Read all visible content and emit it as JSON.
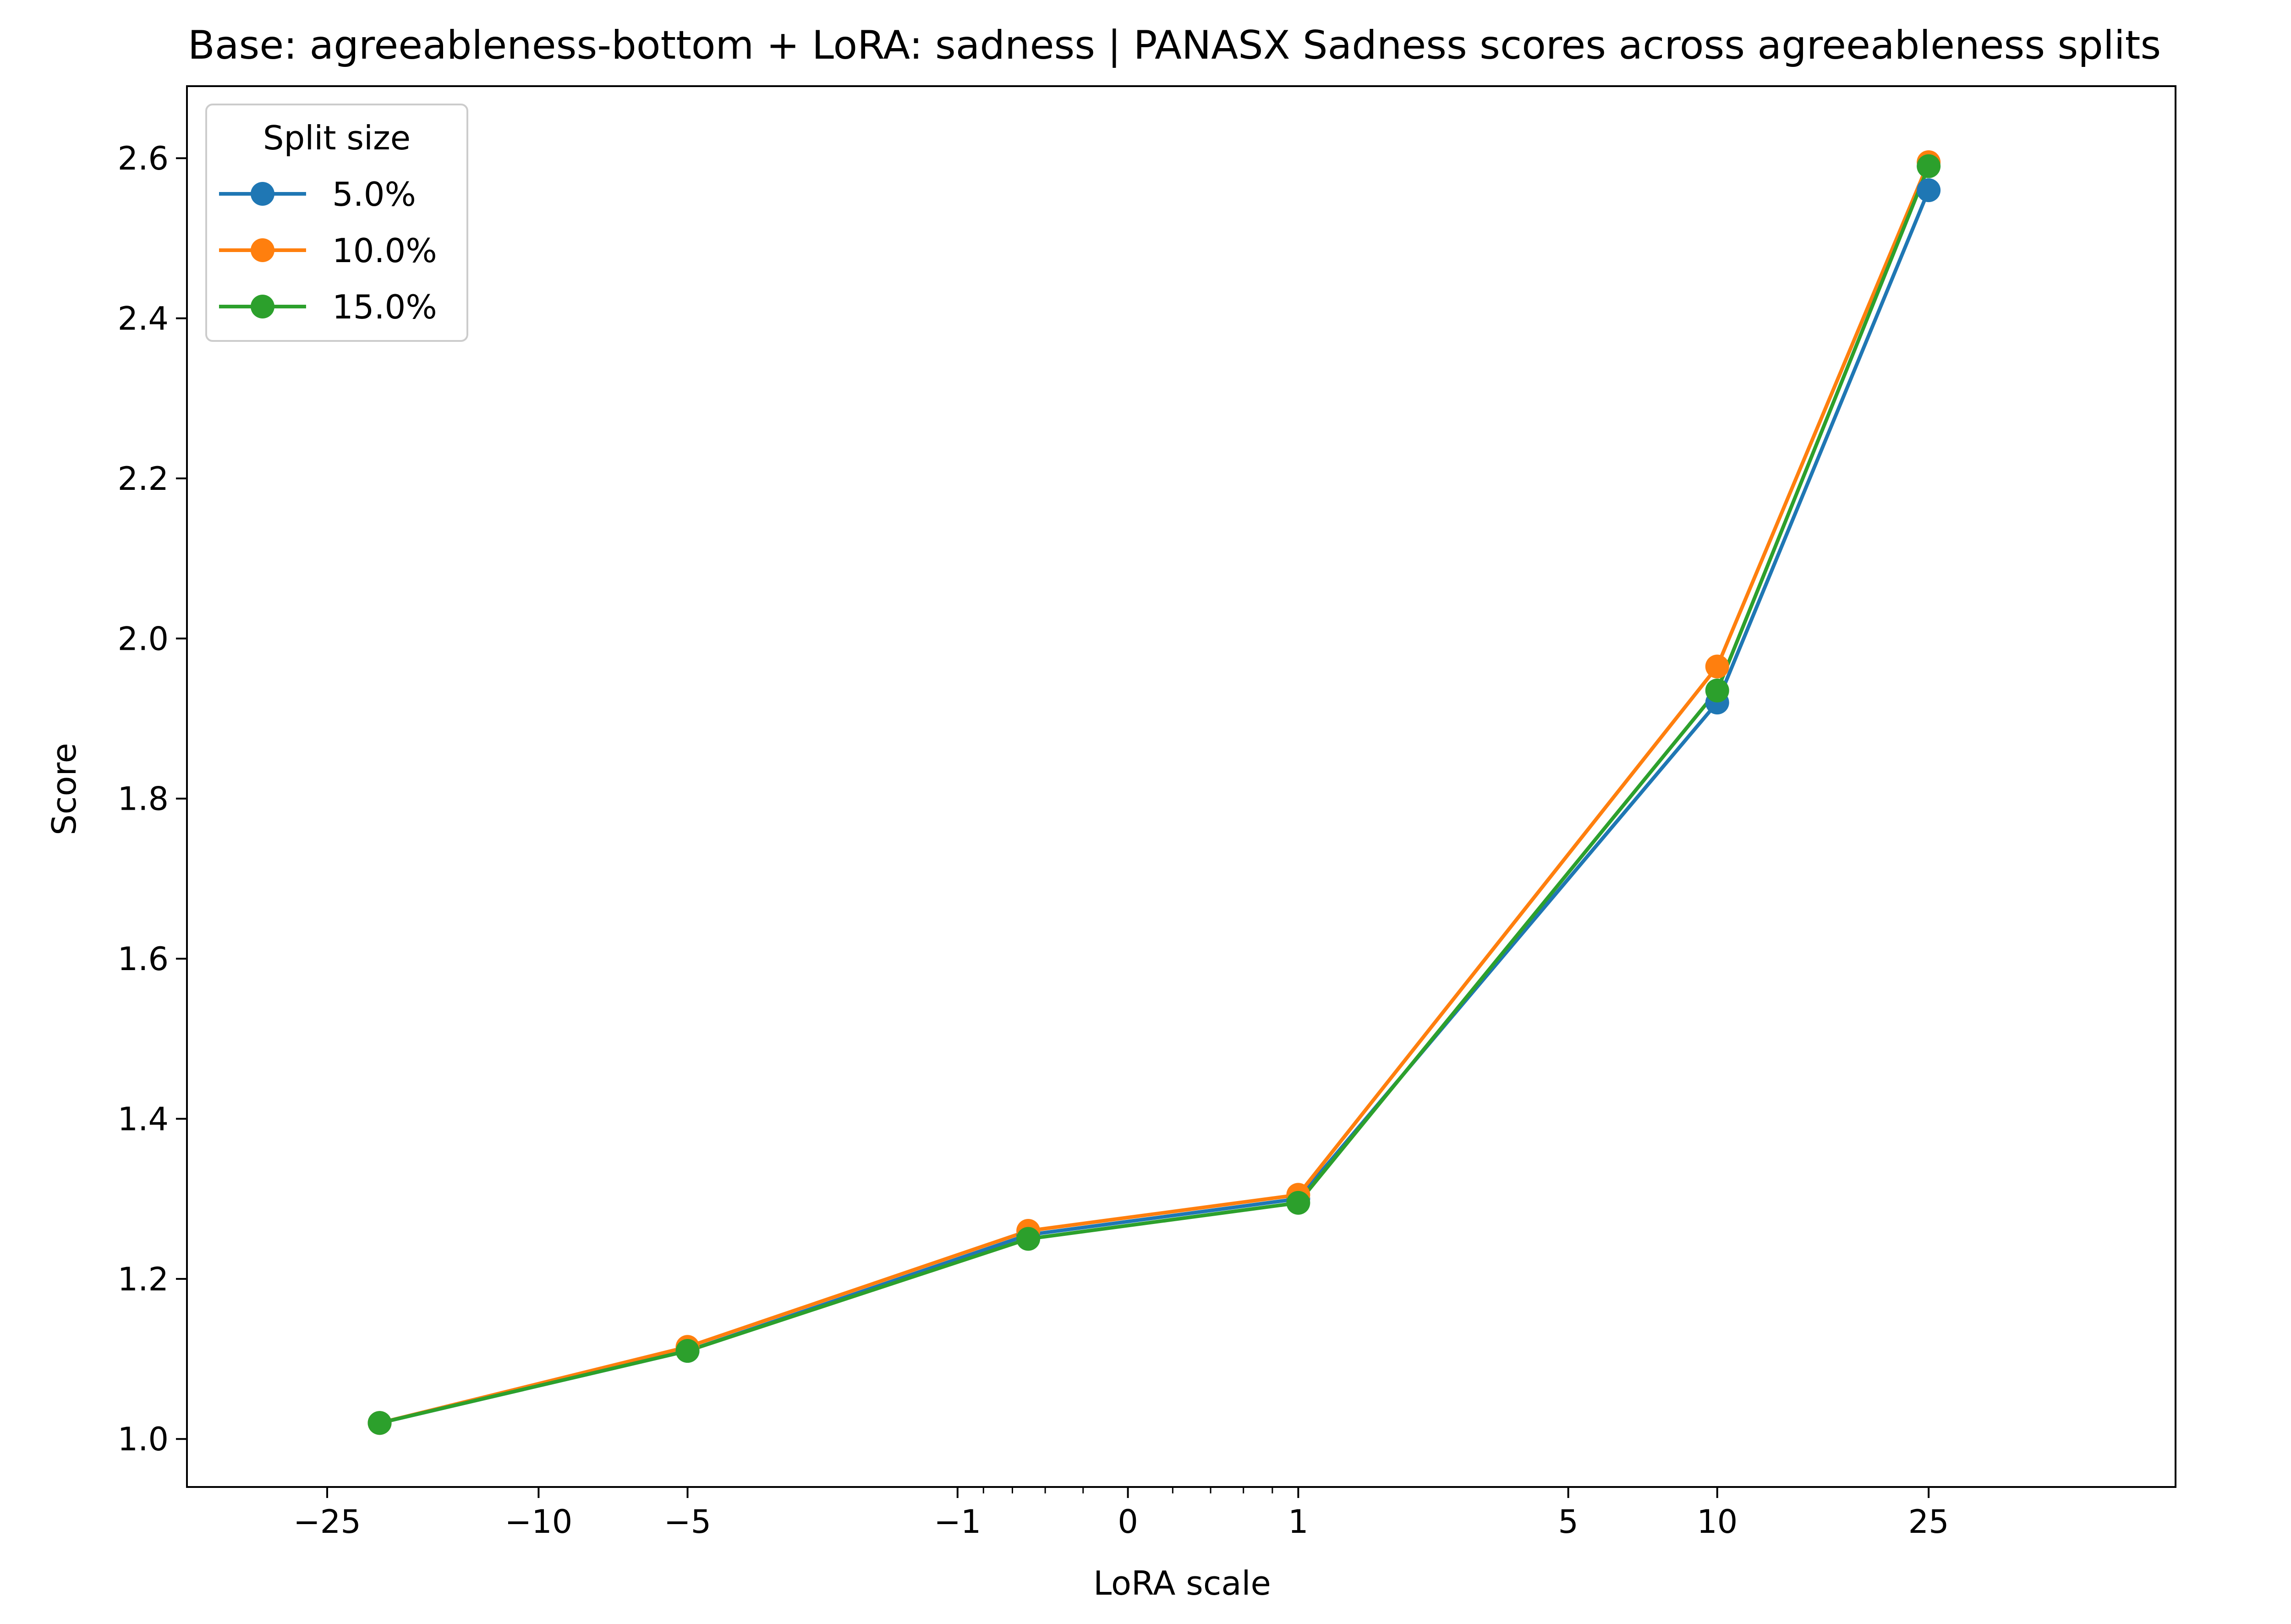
{
  "chart_data": {
    "type": "line",
    "title": "Base: agreeableness-bottom + LoRA: sadness | PANASX Sadness scores across agreeableness splits",
    "xlabel": "LoRA scale",
    "ylabel": "Score",
    "x_scale": "symlog",
    "xlim": [
      -45,
      70
    ],
    "ylim": [
      0.94,
      2.69
    ],
    "x": [
      -20,
      -5,
      -0.5,
      1,
      10,
      25
    ],
    "xticks": [
      {
        "value": -25,
        "label": "−25"
      },
      {
        "value": -10,
        "label": "−10"
      },
      {
        "value": -5,
        "label": "−5"
      },
      {
        "value": -1,
        "label": "−1"
      },
      {
        "value": 0,
        "label": "0"
      },
      {
        "value": 1,
        "label": "1"
      },
      {
        "value": 5,
        "label": "5"
      },
      {
        "value": 10,
        "label": "10"
      },
      {
        "value": 25,
        "label": "25"
      }
    ],
    "yticks": [
      {
        "value": 1.0,
        "label": "1.0"
      },
      {
        "value": 1.2,
        "label": "1.2"
      },
      {
        "value": 1.4,
        "label": "1.4"
      },
      {
        "value": 1.6,
        "label": "1.6"
      },
      {
        "value": 1.8,
        "label": "1.8"
      },
      {
        "value": 2.0,
        "label": "2.0"
      },
      {
        "value": 2.2,
        "label": "2.2"
      },
      {
        "value": 2.4,
        "label": "2.4"
      },
      {
        "value": 2.6,
        "label": "2.6"
      }
    ],
    "legend": {
      "title": "Split size",
      "placement": "top-left"
    },
    "series": [
      {
        "name": "5.0%",
        "color": "#1f77b4",
        "values": [
          1.02,
          1.11,
          1.255,
          1.3,
          1.92,
          2.56
        ]
      },
      {
        "name": "10.0%",
        "color": "#ff7f0e",
        "values": [
          1.02,
          1.115,
          1.26,
          1.305,
          1.965,
          2.595
        ]
      },
      {
        "name": "15.0%",
        "color": "#2ca02c",
        "values": [
          1.02,
          1.11,
          1.25,
          1.295,
          1.935,
          2.59
        ]
      }
    ]
  }
}
